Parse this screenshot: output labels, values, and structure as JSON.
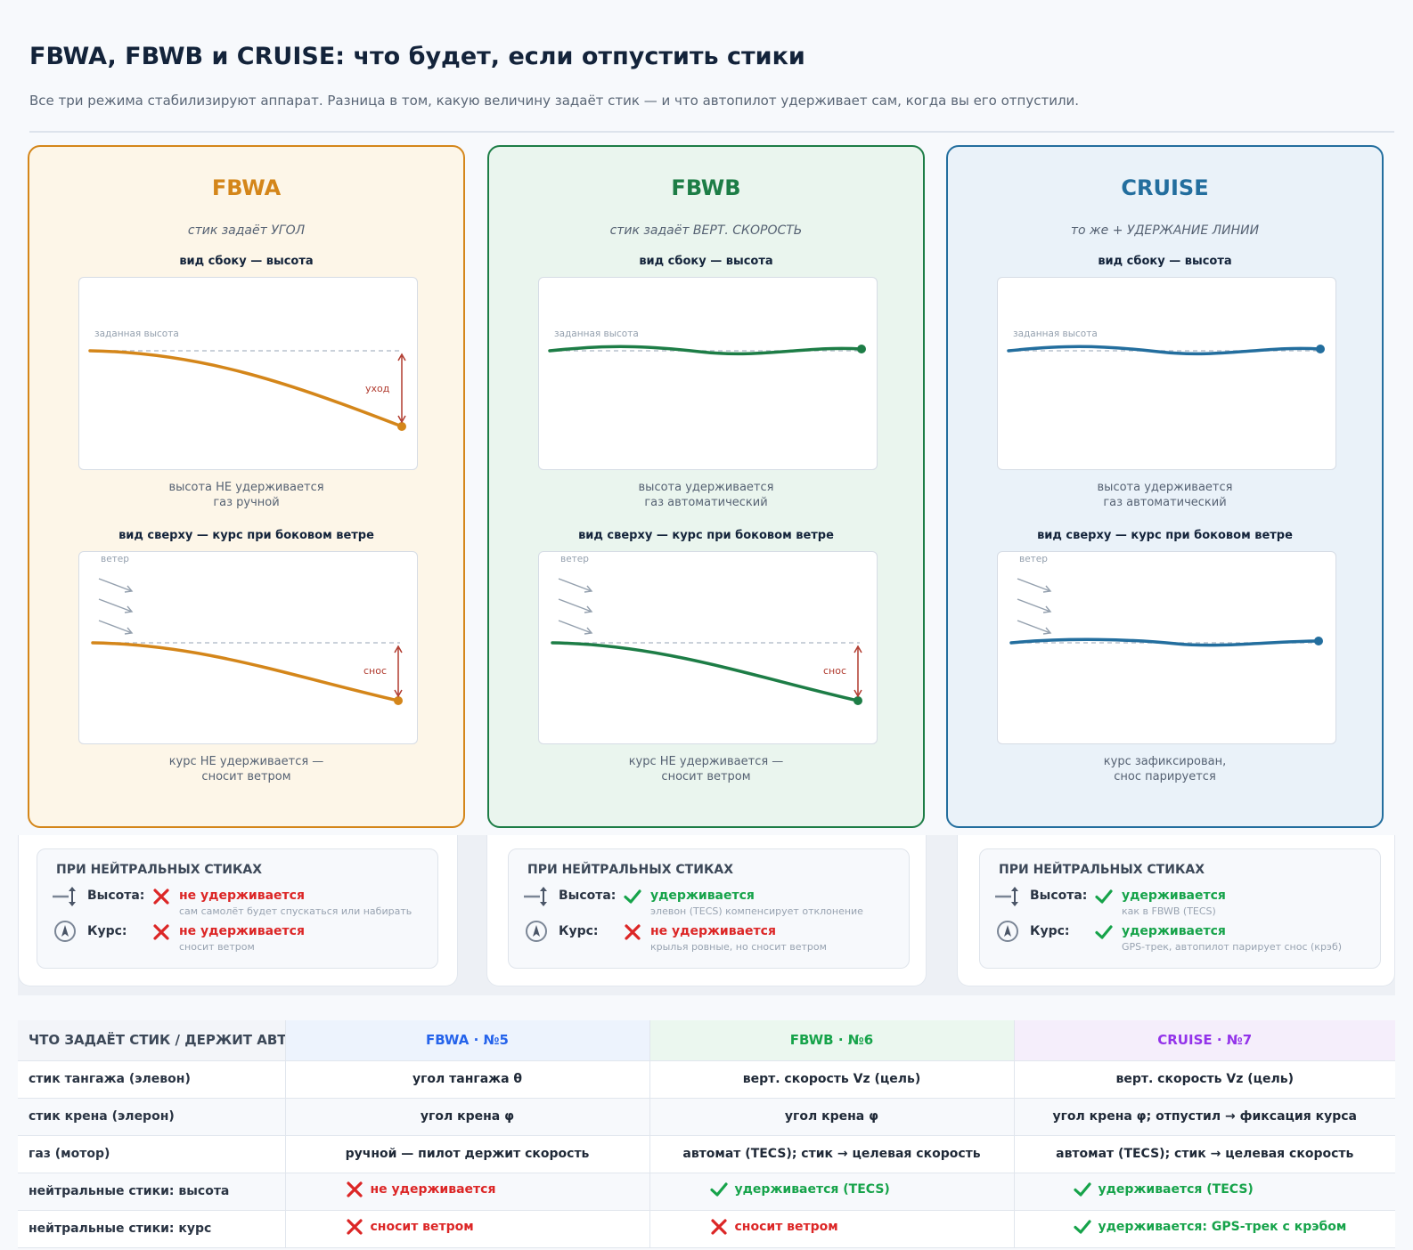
{
  "header": {
    "title": "FBWA, FBWB и CRUISE: что будет, если отпустить стики",
    "subtitle": "Все три режима стабилизируют аппарат. Разница в том, какую величину задаёт стик — и что автопилот удерживает сам, когда вы его отпустили."
  },
  "labels": {
    "side_view": "вид сбоку — высота",
    "top_view": "вид сверху — курс при боковом ветре",
    "target_altitude": "заданная высота",
    "wind": "ветер",
    "drift_alt": "уход",
    "drift_course": "снос",
    "neutral_heading": "ПРИ НЕЙТРАЛЬНЫХ СТИКАХ",
    "altitude": "Высота:",
    "course": "Курс:"
  },
  "modes": [
    {
      "name": "FBWA",
      "color": "#d4861a",
      "tagline": "стик задаёт УГОЛ",
      "side_caption": [
        "высота НЕ удерживается",
        "газ ручной"
      ],
      "top_caption": [
        "курс НЕ удерживается —",
        "сносит ветром"
      ],
      "altitude_held": false,
      "course_held": false,
      "altitude_status": "не удерживается",
      "altitude_note": "сам самолёт будет спускаться или набирать",
      "course_status": "не удерживается",
      "course_note": "сносит ветром"
    },
    {
      "name": "FBWB",
      "color": "#1d7d46",
      "tagline": "стик задаёт ВЕРТ. СКОРОСТЬ",
      "side_caption": [
        "высота удерживается",
        "газ автоматический"
      ],
      "top_caption": [
        "курс НЕ удерживается —",
        "сносит ветром"
      ],
      "altitude_held": true,
      "course_held": false,
      "altitude_status": "удерживается",
      "altitude_note": "элевон (TECS) компенсирует отклонение",
      "course_status": "не удерживается",
      "course_note": "крылья ровные, но сносит ветром"
    },
    {
      "name": "CRUISE",
      "color": "#236e9e",
      "tagline": "то же + УДЕРЖАНИЕ ЛИНИИ",
      "side_caption": [
        "высота удерживается",
        "газ автоматический"
      ],
      "top_caption": [
        "курс зафиксирован,",
        "снос парируется"
      ],
      "altitude_held": true,
      "course_held": true,
      "altitude_status": "удерживается",
      "altitude_note": "как в FBWB (TECS)",
      "course_status": "удерживается",
      "course_note": "GPS-трек, автопилот парирует снос (крэб)"
    }
  ],
  "table": {
    "header": [
      "ЧТО ЗАДАЁТ СТИК / ДЕРЖИТ АВТОПИЛОТ",
      "FBWA · №5",
      "FBWB · №6",
      "CRUISE · №7"
    ],
    "header_colors": [
      "#3c4858",
      "#2563eb",
      "#16a34a",
      "#9333ea"
    ],
    "rows": [
      {
        "label": "стик тангажа (элевон)",
        "cells": [
          "угол тангажа θ",
          "верт. скорость Vz (цель)",
          "верт. скорость Vz (цель)"
        ]
      },
      {
        "label": "стик крена (элерон)",
        "cells": [
          "угол крена φ",
          "угол крена φ",
          "угол крена φ; отпустил → фиксация курса"
        ]
      },
      {
        "label": "газ (мотор)",
        "cells": [
          "ручной — пилот держит скорость",
          "автомат (TECS); стик → целевая скорость",
          "автомат (TECS); стик → целевая скорость"
        ]
      },
      {
        "label": "нейтральные стики: высота",
        "cells": [
          "не удерживается",
          "удерживается (TECS)",
          "удерживается (TECS)"
        ],
        "ok": [
          false,
          true,
          true
        ]
      },
      {
        "label": "нейтральные стики: курс",
        "cells": [
          "сносит ветром",
          "сносит ветром",
          "удерживается: GPS-трек с крэбом"
        ],
        "ok": [
          false,
          false,
          true
        ]
      }
    ]
  },
  "status_colors": {
    "ok": "#16a34a",
    "bad": "#dc2626"
  }
}
